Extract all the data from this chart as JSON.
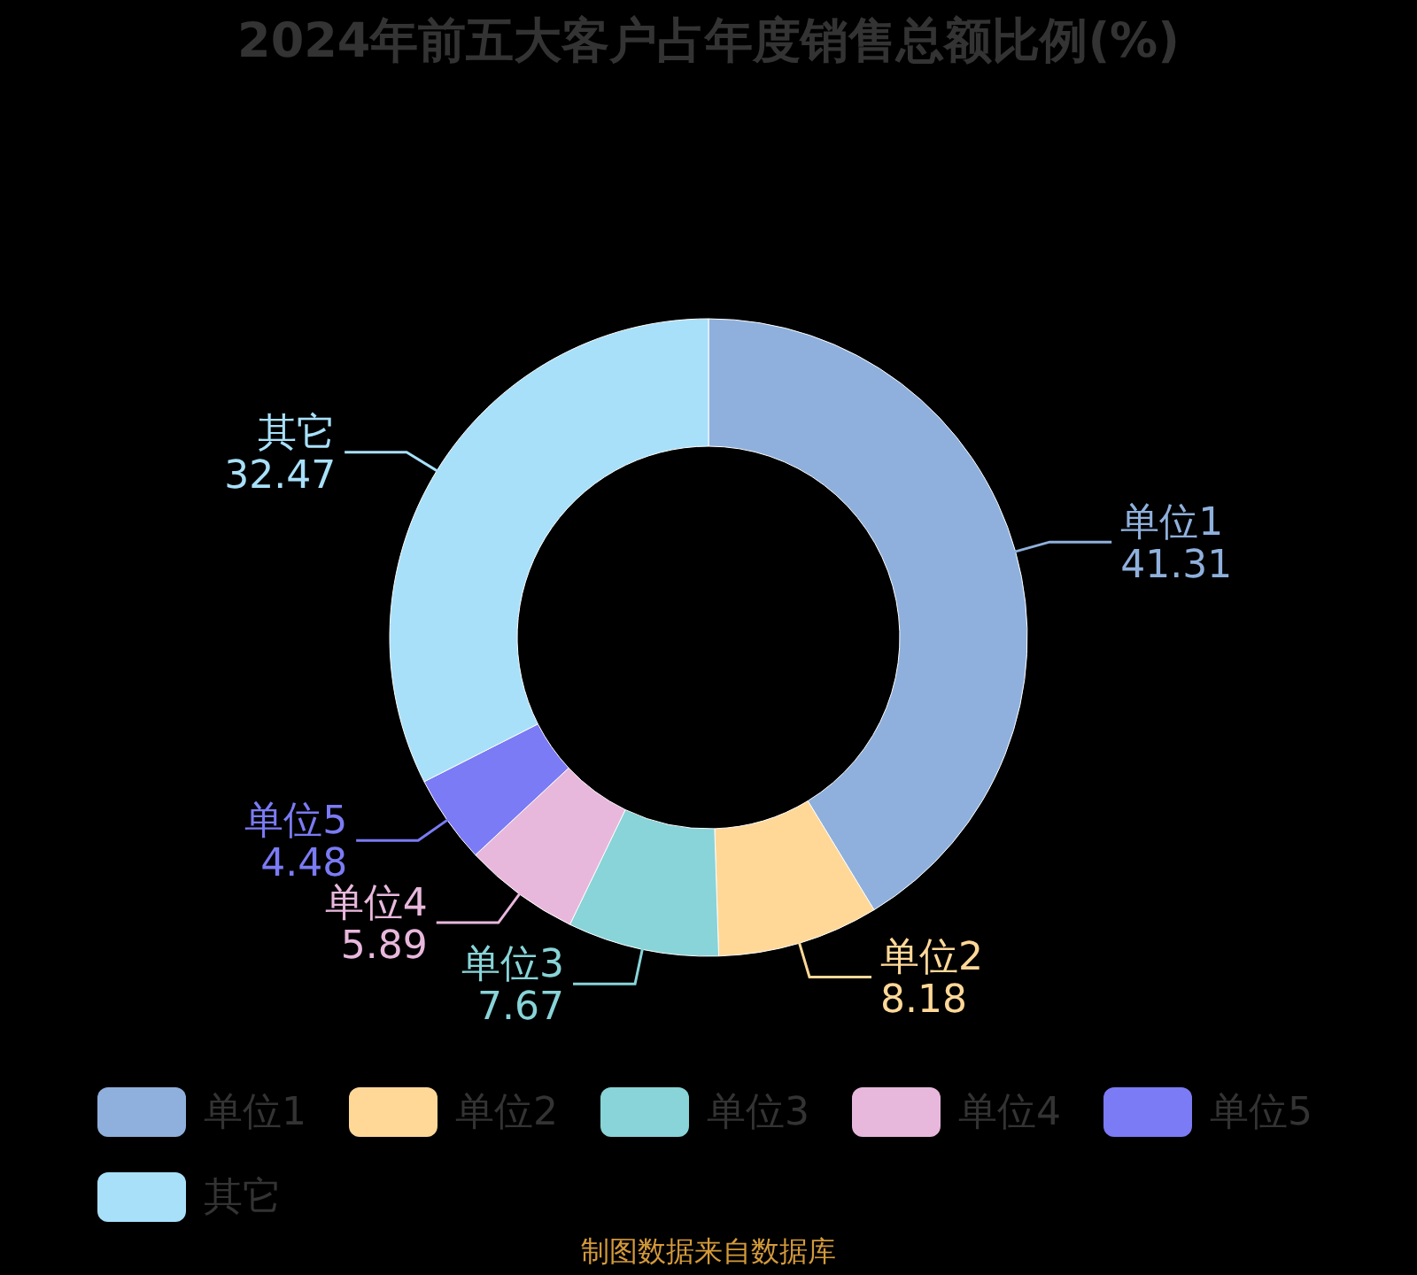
{
  "chart_data": {
    "type": "donut",
    "title": "2024年前五大客户占年度销售总额比例(%)",
    "categories": [
      "单位1",
      "单位2",
      "单位3",
      "单位4",
      "单位5",
      "其它"
    ],
    "values": [
      41.31,
      8.18,
      7.67,
      5.89,
      4.48,
      32.47
    ],
    "colors": [
      "#8fb0dc",
      "#ffd898",
      "#88d4d8",
      "#e8b8dc",
      "#7b7bf5",
      "#a8e0fa"
    ],
    "data_labels": true,
    "legend": "bottom",
    "annotations": [
      "制图数据来自数据库"
    ]
  }
}
